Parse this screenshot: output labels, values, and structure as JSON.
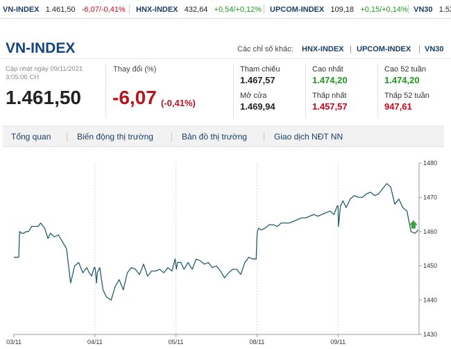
{
  "ticker": [
    {
      "name": "VN-INDEX",
      "value": "1.461,50",
      "change": "-6,07/-0,41%",
      "dir": "down"
    },
    {
      "name": "HNX-INDEX",
      "value": "432,64",
      "change": "+0,54/+0,12%",
      "dir": "up"
    },
    {
      "name": "UPCOM-INDEX",
      "value": "109,18",
      "change": "+0,15/+0,14%",
      "dir": "up"
    },
    {
      "name": "VN30",
      "value": "1.52",
      "change": "",
      "dir": "up"
    }
  ],
  "header": {
    "title": "VN-INDEX",
    "other_label": "Các chỉ số khác:",
    "other_links": [
      "HNX-INDEX",
      "UPCOM-INDEX",
      "VN30"
    ]
  },
  "summary": {
    "updated": "Cập nhật ngày 09/11/2021 3:05:06 CH",
    "price": "1.461,50",
    "change_label": "Thay đổi (%)",
    "change": "-6,07",
    "change_pct": "(-0,41%)"
  },
  "stats": {
    "ref_label": "Tham chiếu",
    "ref": "1.467,57",
    "open_label": "Mở cửa",
    "open": "1.469,94",
    "high_label": "Cao nhất",
    "high": "1.474,20",
    "low_label": "Thấp nhất",
    "low": "1.457,57",
    "high52_label": "Cao 52 tuần",
    "high52": "1.474,20",
    "low52_label": "Thấp 52 tuần",
    "low52": "947,61"
  },
  "tabs": [
    "Tổng quan",
    "Biến động thị trường",
    "Bản đồ thị trường",
    "Giao dịch NĐT NN"
  ],
  "colors": {
    "line": "#1f5f6e",
    "grid": "#d8d8d8",
    "up_arrow": "#3aa23a",
    "down": "#d0021b",
    "up": "#1a9b1a"
  },
  "chart_data": {
    "type": "line",
    "title": "",
    "xlabel": "",
    "ylabel": "",
    "xticks": [
      "03/11",
      "04/11",
      "05/11",
      "08/11",
      "09/11"
    ],
    "yticks": [
      1430,
      1440,
      1450,
      1460,
      1470,
      1480
    ],
    "ylim": [
      1430,
      1480
    ],
    "grid": "vertical dashed at day boundaries",
    "series": [
      {
        "x": [
          0,
          0.06,
          0.07,
          0.1,
          0.12,
          0.15,
          0.18,
          0.22,
          0.3,
          0.33,
          0.38,
          0.42,
          0.45,
          0.5,
          0.55,
          0.6,
          0.65,
          0.7,
          0.75,
          0.8,
          0.85,
          0.9,
          0.93,
          0.96,
          0.99,
          1.0,
          1.005,
          1.02,
          1.03,
          1.06,
          1.1,
          1.14,
          1.2,
          1.25,
          1.3,
          1.35,
          1.4,
          1.45,
          1.5,
          1.55,
          1.6,
          1.65,
          1.7,
          1.75,
          1.8,
          1.85,
          1.9,
          1.95,
          1.99,
          2.0,
          2.005,
          2.02,
          2.06,
          2.1,
          2.15,
          2.2,
          2.25,
          2.3,
          2.35,
          2.4,
          2.45,
          2.5,
          2.55,
          2.6,
          2.65,
          2.7,
          2.75,
          2.8,
          2.85,
          2.9,
          2.95,
          2.99,
          3.0,
          3.005,
          3.02,
          3.05,
          3.1,
          3.15,
          3.2,
          3.25,
          3.3,
          3.35,
          3.4,
          3.45,
          3.5,
          3.55,
          3.6,
          3.65,
          3.7,
          3.75,
          3.8,
          3.85,
          3.9,
          3.95,
          3.99,
          4.0,
          4.005,
          4.03,
          4.06,
          4.1,
          4.15,
          4.2,
          4.25,
          4.3,
          4.35,
          4.4,
          4.45,
          4.5,
          4.55,
          4.6,
          4.65,
          4.7,
          4.75,
          4.8,
          4.85,
          4.9,
          4.95,
          4.99
        ],
        "y": [
          1452.5,
          1452.5,
          1460,
          1459.5,
          1459.5,
          1460,
          1460,
          1461.5,
          1461.5,
          1462.5,
          1461,
          1458,
          1459.5,
          1458.5,
          1459,
          1457,
          1455,
          1445,
          1450,
          1451,
          1448,
          1449.5,
          1448,
          1447,
          1449.5,
          1449.5,
          1449,
          1445,
          1448,
          1449.5,
          1443,
          1441,
          1440,
          1444,
          1446,
          1443,
          1448,
          1449.5,
          1449,
          1447.5,
          1450.5,
          1447,
          1448.5,
          1448.5,
          1449,
          1448,
          1449.5,
          1448.5,
          1452,
          1450,
          1449,
          1451,
          1451,
          1449,
          1451,
          1449,
          1452,
          1451.5,
          1450.5,
          1451,
          1449.5,
          1450,
          1448.5,
          1446.5,
          1448,
          1449,
          1449,
          1447.5,
          1451,
          1452.5,
          1452,
          1452,
          1458.5,
          1460,
          1461,
          1460.5,
          1461,
          1462,
          1462,
          1461.5,
          1462.5,
          1462.5,
          1462.5,
          1463,
          1463.5,
          1464,
          1464,
          1464.5,
          1465,
          1464.5,
          1465,
          1465.5,
          1466,
          1465,
          1467.5,
          1467.5,
          1461.5,
          1467.5,
          1469,
          1467,
          1469.5,
          1470.5,
          1470,
          1470,
          1471,
          1471.5,
          1470.5,
          1471,
          1472.5,
          1474,
          1473,
          1468,
          1469.5,
          1467,
          1466,
          1460,
          1459.5,
          1460.5
        ]
      }
    ],
    "last_value": 1461.5
  }
}
